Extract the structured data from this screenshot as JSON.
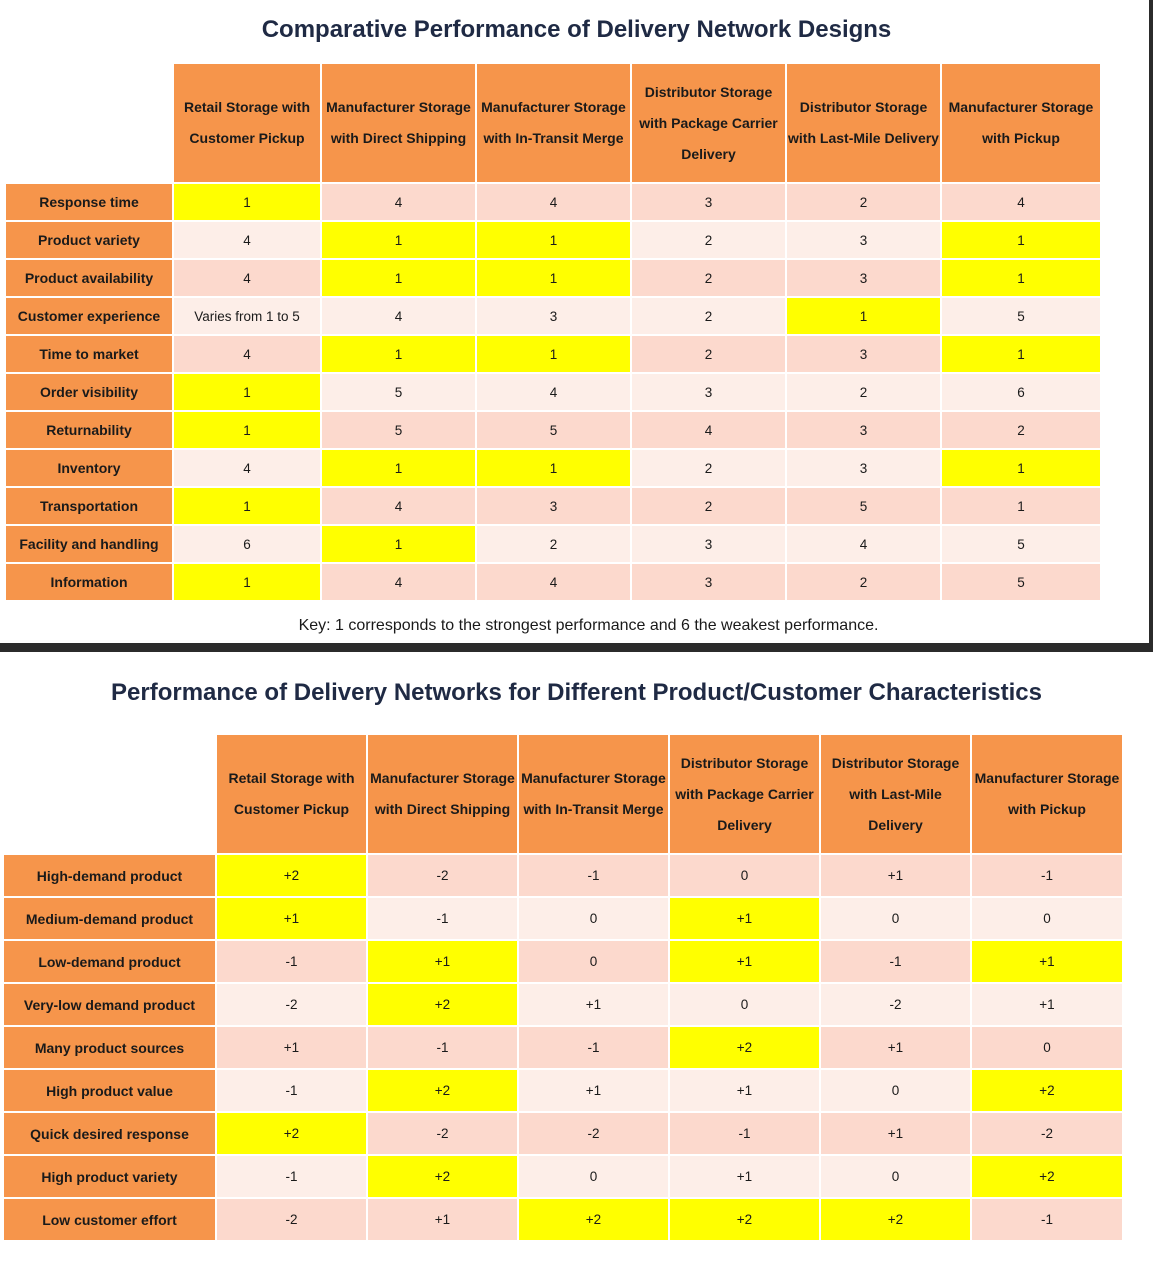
{
  "table1": {
    "title": "Comparative Performance of Delivery Network Designs",
    "columns": [
      "Retail Storage with Customer Pickup",
      "Manufacturer Storage with Direct Shipping",
      "Manufacturer Storage with In-Transit Merge",
      "Distributor Storage with Package Carrier Delivery",
      "Distributor Storage with Last-Mile Delivery",
      "Manufacturer Storage with Pickup"
    ],
    "rows": [
      {
        "label": "Response time",
        "values": [
          "1",
          "4",
          "4",
          "3",
          "2",
          "4"
        ],
        "highlight": [
          true,
          false,
          false,
          false,
          false,
          false
        ]
      },
      {
        "label": "Product variety",
        "values": [
          "4",
          "1",
          "1",
          "2",
          "3",
          "1"
        ],
        "highlight": [
          false,
          true,
          true,
          false,
          false,
          true
        ]
      },
      {
        "label": "Product availability",
        "values": [
          "4",
          "1",
          "1",
          "2",
          "3",
          "1"
        ],
        "highlight": [
          false,
          true,
          true,
          false,
          false,
          true
        ]
      },
      {
        "label": "Customer experience",
        "values": [
          "Varies from 1 to 5",
          "4",
          "3",
          "2",
          "1",
          "5"
        ],
        "highlight": [
          false,
          false,
          false,
          false,
          true,
          false
        ]
      },
      {
        "label": "Time to market",
        "values": [
          "4",
          "1",
          "1",
          "2",
          "3",
          "1"
        ],
        "highlight": [
          false,
          true,
          true,
          false,
          false,
          true
        ]
      },
      {
        "label": "Order visibility",
        "values": [
          "1",
          "5",
          "4",
          "3",
          "2",
          "6"
        ],
        "highlight": [
          true,
          false,
          false,
          false,
          false,
          false
        ]
      },
      {
        "label": "Returnability",
        "values": [
          "1",
          "5",
          "5",
          "4",
          "3",
          "2"
        ],
        "highlight": [
          true,
          false,
          false,
          false,
          false,
          false
        ]
      },
      {
        "label": "Inventory",
        "values": [
          "4",
          "1",
          "1",
          "2",
          "3",
          "1"
        ],
        "highlight": [
          false,
          true,
          true,
          false,
          false,
          true
        ]
      },
      {
        "label": "Transportation",
        "values": [
          "1",
          "4",
          "3",
          "2",
          "5",
          "1"
        ],
        "highlight": [
          true,
          false,
          false,
          false,
          false,
          false
        ]
      },
      {
        "label": "Facility and handling",
        "values": [
          "6",
          "1",
          "2",
          "3",
          "4",
          "5"
        ],
        "highlight": [
          false,
          true,
          false,
          false,
          false,
          false
        ]
      },
      {
        "label": "Information",
        "values": [
          "1",
          "4",
          "4",
          "3",
          "2",
          "5"
        ],
        "highlight": [
          true,
          false,
          false,
          false,
          false,
          false
        ]
      }
    ],
    "key": "Key: 1 corresponds to the strongest performance and 6 the weakest performance."
  },
  "table2": {
    "title": "Performance of Delivery Networks for Different Product/Customer Characteristics",
    "columns": [
      "Retail Storage with Customer Pickup",
      "Manufacturer Storage with Direct Shipping",
      "Manufacturer Storage with In-Transit Merge",
      "Distributor Storage with Package Carrier Delivery",
      "Distributor Storage with Last-Mile Delivery",
      "Manufacturer Storage with Pickup"
    ],
    "rows": [
      {
        "label": "High-demand product",
        "values": [
          "+2",
          "-2",
          "-1",
          "0",
          "+1",
          "-1"
        ],
        "highlight": [
          true,
          false,
          false,
          false,
          false,
          false
        ]
      },
      {
        "label": "Medium-demand product",
        "values": [
          "+1",
          "-1",
          "0",
          "+1",
          "0",
          "0"
        ],
        "highlight": [
          true,
          false,
          false,
          true,
          false,
          false
        ]
      },
      {
        "label": "Low-demand product",
        "values": [
          "-1",
          "+1",
          "0",
          "+1",
          "-1",
          "+1"
        ],
        "highlight": [
          false,
          true,
          false,
          true,
          false,
          true
        ]
      },
      {
        "label": "Very-low demand product",
        "values": [
          "-2",
          "+2",
          "+1",
          "0",
          "-2",
          "+1"
        ],
        "highlight": [
          false,
          true,
          false,
          false,
          false,
          false
        ]
      },
      {
        "label": "Many product sources",
        "values": [
          "+1",
          "-1",
          "-1",
          "+2",
          "+1",
          "0"
        ],
        "highlight": [
          false,
          false,
          false,
          true,
          false,
          false
        ]
      },
      {
        "label": "High product value",
        "values": [
          "-1",
          "+2",
          "+1",
          "+1",
          "0",
          "+2"
        ],
        "highlight": [
          false,
          true,
          false,
          false,
          false,
          true
        ]
      },
      {
        "label": "Quick desired response",
        "values": [
          "+2",
          "-2",
          "-2",
          "-1",
          "+1",
          "-2"
        ],
        "highlight": [
          true,
          false,
          false,
          false,
          false,
          false
        ]
      },
      {
        "label": "High product variety",
        "values": [
          "-1",
          "+2",
          "0",
          "+1",
          "0",
          "+2"
        ],
        "highlight": [
          false,
          true,
          false,
          false,
          false,
          true
        ]
      },
      {
        "label": "Low customer effort",
        "values": [
          "-2",
          "+1",
          "+2",
          "+2",
          "+2",
          "-1"
        ],
        "highlight": [
          false,
          false,
          true,
          true,
          true,
          false
        ]
      }
    ]
  },
  "colors": {
    "header_orange": "#f6954b",
    "highlight_yellow": "#ffff00",
    "row_odd": "#fcd9cd",
    "row_even": "#fdeee8"
  }
}
